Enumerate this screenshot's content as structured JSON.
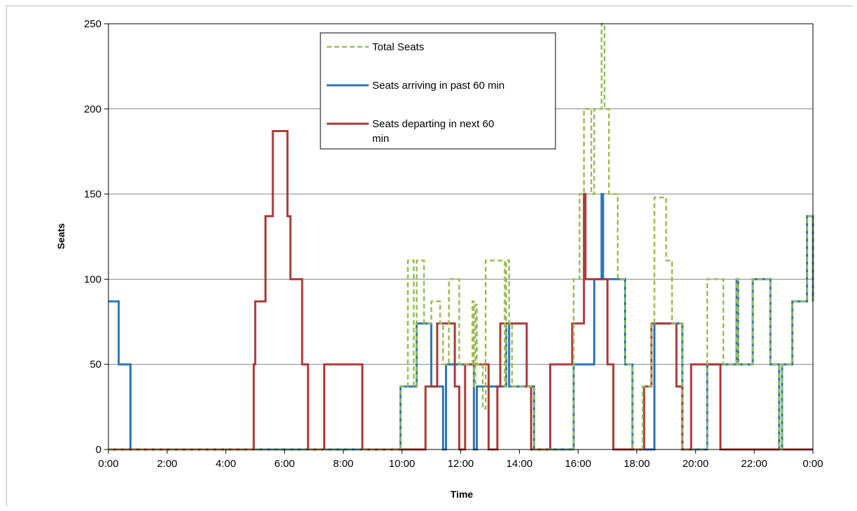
{
  "chart_data": {
    "type": "line",
    "title": "",
    "xlabel": "Time",
    "ylabel": "Seats",
    "xlim": [
      0,
      24
    ],
    "ylim": [
      0,
      250
    ],
    "grid": "horizontal",
    "legend_position": "top-center",
    "x_ticks": [
      "0:00",
      "2:00",
      "4:00",
      "6:00",
      "8:00",
      "10:00",
      "12:00",
      "14:00",
      "16:00",
      "18:00",
      "20:00",
      "22:00",
      "0:00"
    ],
    "y_ticks": [
      "0",
      "50",
      "100",
      "150",
      "200",
      "250"
    ],
    "series": [
      {
        "name": "Total Seats",
        "color": "#9bbb59",
        "dash": true,
        "points": [
          [
            0,
            0
          ],
          [
            9.95,
            0
          ],
          [
            9.95,
            37
          ],
          [
            10.2,
            37
          ],
          [
            10.2,
            111
          ],
          [
            10.4,
            111
          ],
          [
            10.4,
            37
          ],
          [
            10.5,
            37
          ],
          [
            10.5,
            111
          ],
          [
            10.75,
            111
          ],
          [
            10.75,
            74
          ],
          [
            11.0,
            74
          ],
          [
            11.0,
            87
          ],
          [
            11.3,
            87
          ],
          [
            11.3,
            74
          ],
          [
            11.4,
            74
          ],
          [
            11.4,
            50
          ],
          [
            11.6,
            50
          ],
          [
            11.6,
            100
          ],
          [
            11.95,
            100
          ],
          [
            11.95,
            50
          ],
          [
            12.4,
            50
          ],
          [
            12.4,
            87
          ],
          [
            12.45,
            87
          ],
          [
            12.45,
            37
          ],
          [
            12.5,
            37
          ],
          [
            12.5,
            85
          ],
          [
            12.55,
            85
          ],
          [
            12.55,
            50
          ],
          [
            12.75,
            50
          ],
          [
            12.75,
            24
          ],
          [
            12.85,
            24
          ],
          [
            12.85,
            111
          ],
          [
            13.5,
            111
          ],
          [
            13.5,
            37
          ],
          [
            13.55,
            37
          ],
          [
            13.55,
            111
          ],
          [
            13.65,
            111
          ],
          [
            13.65,
            74
          ],
          [
            13.75,
            74
          ],
          [
            13.75,
            37
          ],
          [
            14.5,
            37
          ],
          [
            14.5,
            0
          ],
          [
            15.85,
            0
          ],
          [
            15.85,
            100
          ],
          [
            16.05,
            100
          ],
          [
            16.05,
            150
          ],
          [
            16.2,
            150
          ],
          [
            16.2,
            200
          ],
          [
            16.45,
            200
          ],
          [
            16.45,
            150
          ],
          [
            16.55,
            150
          ],
          [
            16.55,
            200
          ],
          [
            16.8,
            200
          ],
          [
            16.8,
            250
          ],
          [
            16.9,
            250
          ],
          [
            16.9,
            200
          ],
          [
            17.05,
            200
          ],
          [
            17.05,
            150
          ],
          [
            17.35,
            150
          ],
          [
            17.35,
            100
          ],
          [
            17.6,
            100
          ],
          [
            17.6,
            50
          ],
          [
            17.85,
            50
          ],
          [
            17.85,
            0
          ],
          [
            18.2,
            0
          ],
          [
            18.2,
            37
          ],
          [
            18.5,
            37
          ],
          [
            18.5,
            74
          ],
          [
            18.6,
            74
          ],
          [
            18.6,
            148
          ],
          [
            19.0,
            148
          ],
          [
            19.0,
            111
          ],
          [
            19.2,
            111
          ],
          [
            19.2,
            74
          ],
          [
            19.55,
            74
          ],
          [
            19.55,
            0
          ],
          [
            20.4,
            0
          ],
          [
            20.4,
            100
          ],
          [
            20.95,
            100
          ],
          [
            20.95,
            50
          ],
          [
            21.4,
            50
          ],
          [
            21.4,
            100
          ],
          [
            21.45,
            100
          ],
          [
            21.45,
            50
          ],
          [
            21.95,
            50
          ],
          [
            21.95,
            100
          ],
          [
            22.55,
            100
          ],
          [
            22.55,
            50
          ],
          [
            22.85,
            50
          ],
          [
            22.85,
            0
          ],
          [
            22.95,
            0
          ],
          [
            22.95,
            50
          ],
          [
            23.3,
            50
          ],
          [
            23.3,
            87
          ],
          [
            23.8,
            87
          ],
          [
            23.8,
            137
          ],
          [
            24,
            137
          ],
          [
            24,
            87
          ]
        ]
      },
      {
        "name": "Seats arriving in past 60 min",
        "color": "#2e75b6",
        "dash": false,
        "points": [
          [
            0,
            87
          ],
          [
            0.35,
            87
          ],
          [
            0.35,
            50
          ],
          [
            0.75,
            50
          ],
          [
            0.75,
            0
          ],
          [
            9.95,
            0
          ],
          [
            9.95,
            37
          ],
          [
            10.5,
            37
          ],
          [
            10.5,
            74
          ],
          [
            11.0,
            74
          ],
          [
            11.0,
            37
          ],
          [
            11.4,
            37
          ],
          [
            11.4,
            0
          ],
          [
            11.5,
            0
          ],
          [
            11.5,
            50
          ],
          [
            12.45,
            50
          ],
          [
            12.45,
            0
          ],
          [
            12.55,
            0
          ],
          [
            12.55,
            37
          ],
          [
            13.55,
            37
          ],
          [
            13.55,
            74
          ],
          [
            13.65,
            74
          ],
          [
            13.65,
            37
          ],
          [
            14.5,
            37
          ],
          [
            14.5,
            0
          ],
          [
            15.85,
            0
          ],
          [
            15.85,
            50
          ],
          [
            16.55,
            50
          ],
          [
            16.55,
            100
          ],
          [
            16.8,
            100
          ],
          [
            16.8,
            150
          ],
          [
            16.85,
            150
          ],
          [
            16.85,
            100
          ],
          [
            17.6,
            100
          ],
          [
            17.6,
            50
          ],
          [
            17.85,
            50
          ],
          [
            17.85,
            0
          ],
          [
            18.6,
            0
          ],
          [
            18.6,
            74
          ],
          [
            19.55,
            74
          ],
          [
            19.55,
            0
          ],
          [
            20.4,
            0
          ],
          [
            20.4,
            50
          ],
          [
            21.4,
            50
          ],
          [
            21.4,
            100
          ],
          [
            21.45,
            100
          ],
          [
            21.45,
            50
          ],
          [
            21.95,
            50
          ],
          [
            21.95,
            100
          ],
          [
            22.55,
            100
          ],
          [
            22.55,
            50
          ],
          [
            22.85,
            50
          ],
          [
            22.85,
            0
          ],
          [
            22.95,
            0
          ],
          [
            22.95,
            50
          ],
          [
            23.3,
            50
          ],
          [
            23.3,
            87
          ],
          [
            23.8,
            87
          ],
          [
            23.8,
            137
          ],
          [
            24,
            137
          ],
          [
            24,
            87
          ]
        ]
      },
      {
        "name": "Seats departing in next 60 min",
        "color": "#a83c3a",
        "dash": false,
        "points": [
          [
            0,
            0
          ],
          [
            4.95,
            0
          ],
          [
            4.95,
            50
          ],
          [
            5.0,
            50
          ],
          [
            5.0,
            87
          ],
          [
            5.35,
            87
          ],
          [
            5.35,
            137
          ],
          [
            5.6,
            137
          ],
          [
            5.6,
            187
          ],
          [
            6.1,
            187
          ],
          [
            6.1,
            137
          ],
          [
            6.2,
            137
          ],
          [
            6.2,
            100
          ],
          [
            6.6,
            100
          ],
          [
            6.6,
            50
          ],
          [
            6.8,
            50
          ],
          [
            6.8,
            0
          ],
          [
            7.35,
            0
          ],
          [
            7.35,
            50
          ],
          [
            8.65,
            50
          ],
          [
            8.65,
            0
          ],
          [
            10.8,
            0
          ],
          [
            10.8,
            37
          ],
          [
            11.2,
            37
          ],
          [
            11.2,
            74
          ],
          [
            11.8,
            74
          ],
          [
            11.8,
            37
          ],
          [
            11.95,
            37
          ],
          [
            11.95,
            0
          ],
          [
            12.15,
            0
          ],
          [
            12.15,
            50
          ],
          [
            12.95,
            50
          ],
          [
            12.95,
            0
          ],
          [
            13.25,
            0
          ],
          [
            13.25,
            37
          ],
          [
            13.35,
            37
          ],
          [
            13.35,
            74
          ],
          [
            14.25,
            74
          ],
          [
            14.25,
            37
          ],
          [
            14.4,
            37
          ],
          [
            14.4,
            0
          ],
          [
            15.05,
            0
          ],
          [
            15.05,
            50
          ],
          [
            15.8,
            50
          ],
          [
            15.8,
            74
          ],
          [
            16.2,
            74
          ],
          [
            16.2,
            150
          ],
          [
            16.25,
            150
          ],
          [
            16.25,
            100
          ],
          [
            17.0,
            100
          ],
          [
            17.0,
            50
          ],
          [
            17.2,
            50
          ],
          [
            17.2,
            0
          ],
          [
            18.25,
            0
          ],
          [
            18.25,
            37
          ],
          [
            18.5,
            37
          ],
          [
            18.5,
            74
          ],
          [
            19.35,
            74
          ],
          [
            19.35,
            37
          ],
          [
            19.55,
            37
          ],
          [
            19.55,
            0
          ],
          [
            19.85,
            0
          ],
          [
            19.85,
            50
          ],
          [
            20.85,
            50
          ],
          [
            20.85,
            0
          ],
          [
            24,
            0
          ]
        ]
      }
    ]
  }
}
